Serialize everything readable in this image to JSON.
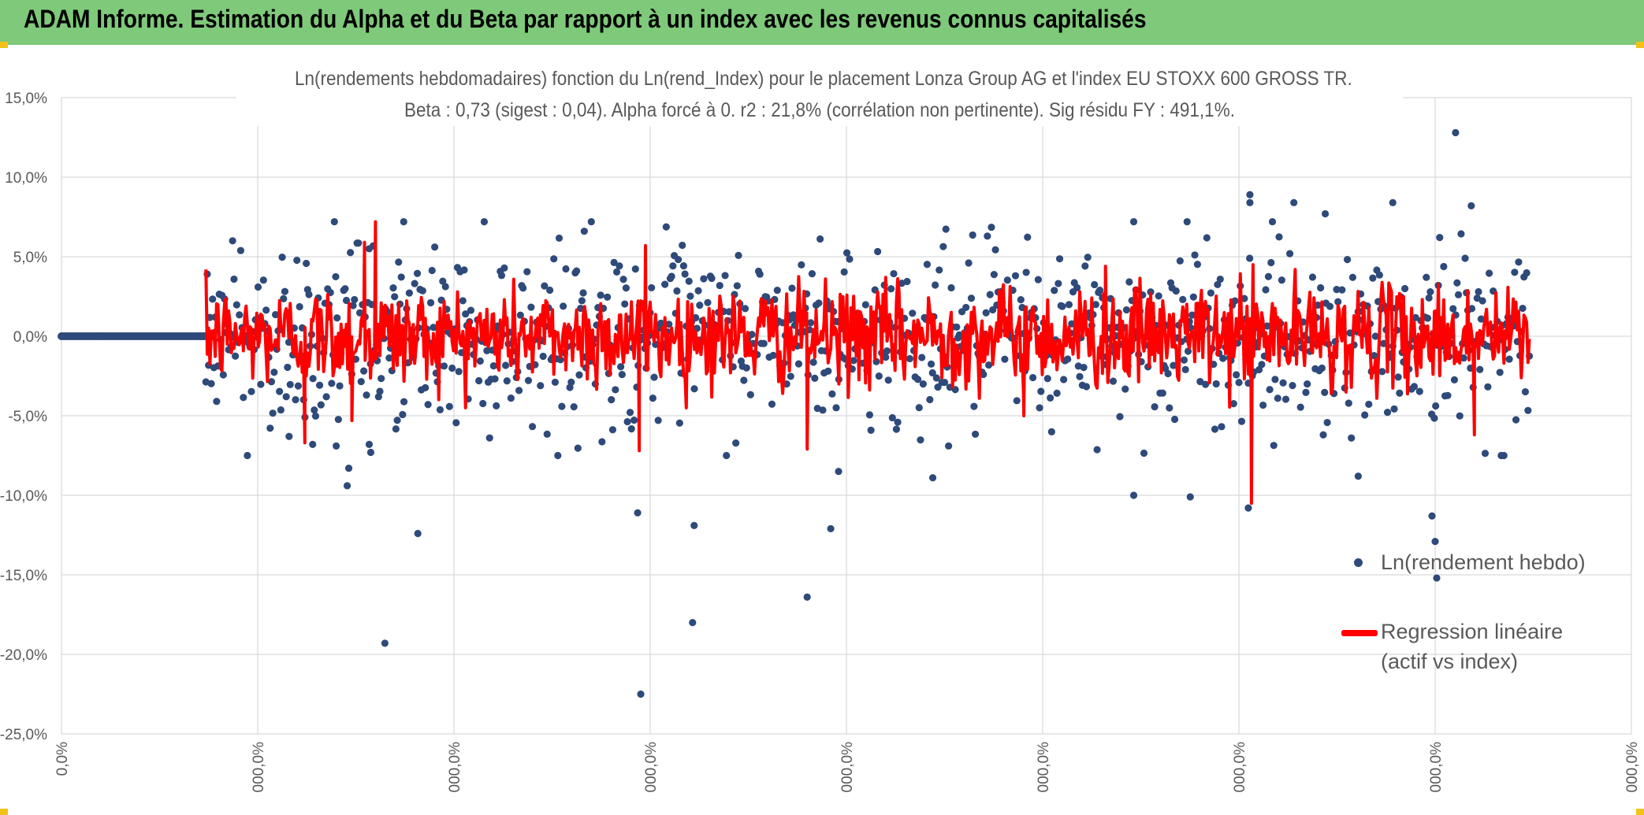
{
  "header": {
    "title": "ADAM Informe. Estimation du Alpha et du Beta par rapport à un index avec les revenus connus capitalisés"
  },
  "colors": {
    "header_bg": "#7fc97a",
    "scatter": "#2e4a7a",
    "regression": "#ff0000",
    "grid": "#d9d9d9",
    "text": "#595959"
  },
  "chart_data": {
    "type": "scatter",
    "title": "Ln(rendements hebdomadaires) fonction du Ln(rend_Index) pour le placement Lonza Group AG et l'index EU STOXX 600 GROSS TR.",
    "subtitle": "Beta : 0,73 (sigest : 0,04). Alpha forcé à 0. r2 : 21,8% (corrélation non pertinente). Sig résidu FY : 491,1%.",
    "ylim": [
      -25,
      15
    ],
    "y_ticks": [
      15,
      10,
      5,
      0,
      -5,
      -10,
      -15,
      -20,
      -25
    ],
    "y_tick_labels": [
      "15,0%",
      "10,0%",
      "5,0%",
      "0,0%",
      "-5,0%",
      "-10,0%",
      "-15,0%",
      "-20,0%",
      "-25,0%"
    ],
    "x_tick_labels": [
      "0,0%",
      "000,0%",
      "000,0%",
      "000,0%",
      "000,0%",
      "000,0%",
      "000,0%",
      "000,0%",
      "000,0%"
    ],
    "grid": true,
    "legend_position": "right",
    "series": [
      {
        "name": "Ln(rendement hebdo)",
        "kind": "scatter"
      },
      {
        "name": "Regression linéaire",
        "name_line2": "(actif vs index)",
        "kind": "line"
      }
    ],
    "n_points": 1100,
    "zero_run_fraction": 0.09,
    "scatter_sigma": 2.8,
    "regression_sigma": 1.55,
    "outliers": [
      {
        "x": 0.196,
        "y": -6.8
      },
      {
        "x": 0.197,
        "y": -7.3
      },
      {
        "x": 0.145,
        "y": -6.3
      },
      {
        "x": 0.16,
        "y": -6.8
      },
      {
        "x": 0.175,
        "y": -6.9
      },
      {
        "x": 0.182,
        "y": -9.4
      },
      {
        "x": 0.183,
        "y": -8.3
      },
      {
        "x": 0.206,
        "y": -19.3
      },
      {
        "x": 0.227,
        "y": -12.4
      },
      {
        "x": 0.367,
        "y": -11.1
      },
      {
        "x": 0.369,
        "y": -22.5
      },
      {
        "x": 0.403,
        "y": -11.9
      },
      {
        "x": 0.402,
        "y": -18.0
      },
      {
        "x": 0.475,
        "y": -16.4
      },
      {
        "x": 0.49,
        "y": -12.1
      },
      {
        "x": 0.495,
        "y": -8.5
      },
      {
        "x": 0.555,
        "y": -8.9
      },
      {
        "x": 0.683,
        "y": -10.0
      },
      {
        "x": 0.719,
        "y": -10.1
      },
      {
        "x": 0.756,
        "y": -10.8
      },
      {
        "x": 0.826,
        "y": -8.8
      },
      {
        "x": 0.873,
        "y": -11.3
      },
      {
        "x": 0.875,
        "y": -12.9
      },
      {
        "x": 0.876,
        "y": -15.2
      },
      {
        "x": 0.888,
        "y": 12.8
      },
      {
        "x": 0.848,
        "y": 8.4
      },
      {
        "x": 0.785,
        "y": 8.4
      },
      {
        "x": 0.757,
        "y": 8.9
      },
      {
        "x": 0.757,
        "y": 8.4
      },
      {
        "x": 0.898,
        "y": 8.2
      },
      {
        "x": 0.805,
        "y": 7.7
      },
      {
        "x": 0.683,
        "y": 7.2
      },
      {
        "x": 0.717,
        "y": 7.2
      },
      {
        "x": 0.218,
        "y": 7.2
      },
      {
        "x": 0.109,
        "y": 6.0
      },
      {
        "x": 0.333,
        "y": 6.6
      }
    ],
    "regression_spikes": [
      {
        "x": 0.155,
        "y": -6.7
      },
      {
        "x": 0.2,
        "y": 7.2
      },
      {
        "x": 0.185,
        "y": -5.3
      },
      {
        "x": 0.193,
        "y": 5.9
      },
      {
        "x": 0.368,
        "y": -7.2
      },
      {
        "x": 0.372,
        "y": 5.7
      },
      {
        "x": 0.475,
        "y": -7.1
      },
      {
        "x": 0.758,
        "y": -10.5
      },
      {
        "x": 0.759,
        "y": 4.5
      },
      {
        "x": 0.9,
        "y": -6.2
      },
      {
        "x": 0.613,
        "y": -5.0
      },
      {
        "x": 0.665,
        "y": 4.4
      }
    ]
  },
  "legend": {
    "item1": "Ln(rendement hebdo)",
    "item2_line1": "Regression linéaire",
    "item2_line2": "(actif vs index)"
  }
}
